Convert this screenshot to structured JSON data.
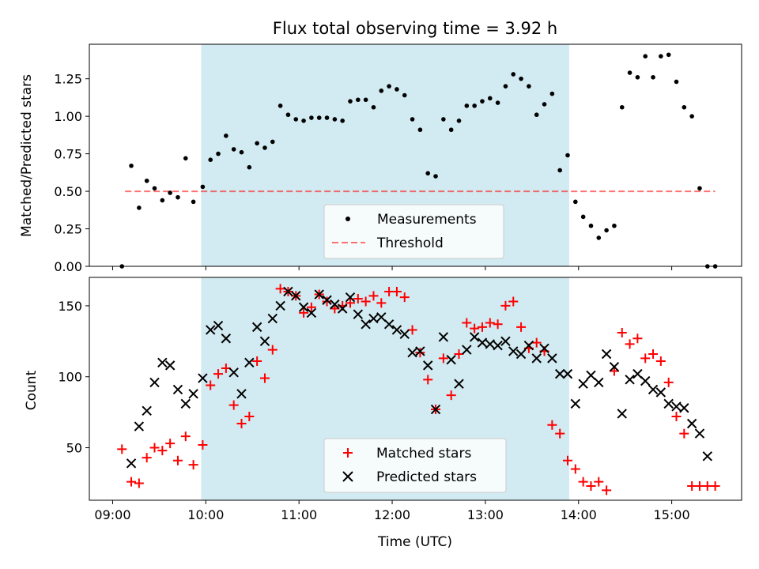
{
  "figure": {
    "title": "Flux total observing time = 3.92 h",
    "xlabel": "Time (UTC)",
    "x_tick_labels": [
      "09:00",
      "10:00",
      "11:00",
      "12:00",
      "13:00",
      "14:00",
      "15:00"
    ]
  },
  "colors": {
    "span": "#add8e6",
    "measurement": "#000000",
    "threshold": "#ff0000",
    "matched": "#ff0000",
    "predicted": "#000000"
  },
  "chart_data": [
    {
      "type": "scatter",
      "title": "Flux total observing time = 3.92 h",
      "ylabel": "Matched/Predicted stars",
      "xlim": [
        "08:45",
        "15:45"
      ],
      "ylim": [
        0,
        1.48
      ],
      "y_ticks": [
        "0.00",
        "0.25",
        "0.50",
        "0.75",
        "1.00",
        "1.25"
      ],
      "shaded_span": [
        "09:57",
        "13:54"
      ],
      "legend": {
        "location": "bottom-center",
        "entries": [
          "Measurements",
          "Threshold"
        ]
      },
      "threshold": {
        "name": "Threshold",
        "value": 0.5,
        "x_range": [
          "09:08",
          "15:28"
        ]
      },
      "series": [
        {
          "name": "Measurements",
          "marker": "dot",
          "x": [
            "09:06",
            "09:12",
            "09:17",
            "09:22",
            "09:27",
            "09:32",
            "09:37",
            "09:42",
            "09:47",
            "09:52",
            "09:58",
            "10:03",
            "10:08",
            "10:13",
            "10:18",
            "10:23",
            "10:28",
            "10:33",
            "10:38",
            "10:43",
            "10:48",
            "10:53",
            "10:58",
            "11:03",
            "11:08",
            "11:13",
            "11:18",
            "11:23",
            "11:28",
            "11:33",
            "11:38",
            "11:43",
            "11:48",
            "11:53",
            "11:58",
            "12:03",
            "12:08",
            "12:13",
            "12:18",
            "12:23",
            "12:28",
            "12:33",
            "12:38",
            "12:43",
            "12:48",
            "12:53",
            "12:58",
            "13:03",
            "13:08",
            "13:13",
            "13:18",
            "13:23",
            "13:28",
            "13:33",
            "13:38",
            "13:43",
            "13:48",
            "13:53",
            "13:58",
            "14:03",
            "14:08",
            "14:13",
            "14:18",
            "14:23",
            "14:28",
            "14:33",
            "14:38",
            "14:43",
            "14:48",
            "14:53",
            "14:58",
            "15:03",
            "15:08",
            "15:13",
            "15:18",
            "15:23",
            "15:28"
          ],
          "y": [
            0.0,
            0.67,
            0.39,
            0.57,
            0.52,
            0.44,
            0.49,
            0.46,
            0.72,
            0.43,
            0.53,
            0.71,
            0.75,
            0.87,
            0.78,
            0.76,
            0.66,
            0.82,
            0.79,
            0.83,
            1.07,
            1.01,
            0.98,
            0.97,
            0.99,
            0.99,
            0.99,
            0.98,
            0.97,
            1.1,
            1.11,
            1.11,
            1.06,
            1.17,
            1.2,
            1.18,
            1.14,
            0.98,
            0.91,
            0.62,
            0.6,
            0.98,
            0.91,
            0.97,
            1.07,
            1.07,
            1.1,
            1.12,
            1.09,
            1.2,
            1.28,
            1.25,
            1.2,
            1.01,
            1.08,
            1.15,
            0.64,
            0.74,
            0.43,
            0.33,
            0.27,
            0.19,
            0.24,
            0.27,
            1.06,
            1.29,
            1.26,
            1.4,
            1.26,
            1.4,
            1.41,
            1.23,
            1.06,
            1.0,
            0.52,
            0.0,
            0.0
          ]
        }
      ]
    },
    {
      "type": "scatter",
      "ylabel": "Count",
      "xlabel": "Time (UTC)",
      "xlim": [
        "08:45",
        "15:45"
      ],
      "ylim": [
        13,
        170
      ],
      "y_ticks": [
        "50",
        "100",
        "150"
      ],
      "shaded_span": [
        "09:57",
        "13:54"
      ],
      "legend": {
        "location": "bottom-center",
        "entries": [
          "Matched stars",
          "Predicted stars"
        ]
      },
      "series": [
        {
          "name": "Matched stars",
          "marker": "plus",
          "x": [
            "09:06",
            "09:12",
            "09:17",
            "09:22",
            "09:27",
            "09:32",
            "09:37",
            "09:42",
            "09:47",
            "09:52",
            "09:58",
            "10:03",
            "10:08",
            "10:13",
            "10:18",
            "10:23",
            "10:28",
            "10:33",
            "10:38",
            "10:43",
            "10:48",
            "10:53",
            "10:58",
            "11:03",
            "11:08",
            "11:13",
            "11:18",
            "11:23",
            "11:28",
            "11:33",
            "11:38",
            "11:43",
            "11:48",
            "11:53",
            "11:58",
            "12:03",
            "12:08",
            "12:13",
            "12:18",
            "12:23",
            "12:28",
            "12:33",
            "12:38",
            "12:43",
            "12:48",
            "12:53",
            "12:58",
            "13:03",
            "13:08",
            "13:13",
            "13:18",
            "13:23",
            "13:28",
            "13:33",
            "13:38",
            "13:43",
            "13:48",
            "13:53",
            "13:58",
            "14:03",
            "14:08",
            "14:13",
            "14:18",
            "14:23",
            "14:28",
            "14:33",
            "14:38",
            "14:43",
            "14:48",
            "14:53",
            "14:58",
            "15:03",
            "15:08",
            "15:13",
            "15:18",
            "15:23",
            "15:28"
          ],
          "y": [
            49,
            26,
            25,
            43,
            50,
            48,
            53,
            41,
            58,
            38,
            52,
            94,
            102,
            106,
            80,
            67,
            72,
            111,
            99,
            119,
            162,
            160,
            157,
            145,
            149,
            158,
            153,
            148,
            150,
            152,
            155,
            153,
            157,
            152,
            160,
            160,
            156,
            133,
            117,
            98,
            77,
            113,
            87,
            116,
            138,
            134,
            135,
            138,
            137,
            150,
            153,
            135,
            120,
            124,
            118,
            66,
            60,
            41,
            35,
            26,
            23,
            26,
            20,
            104,
            131,
            123,
            127,
            113,
            116,
            111,
            96,
            72,
            60,
            23,
            23,
            23,
            23
          ]
        },
        {
          "name": "Predicted stars",
          "marker": "x",
          "x": [
            "09:12",
            "09:17",
            "09:22",
            "09:27",
            "09:32",
            "09:37",
            "09:42",
            "09:47",
            "09:52",
            "09:58",
            "10:03",
            "10:08",
            "10:13",
            "10:18",
            "10:23",
            "10:28",
            "10:33",
            "10:38",
            "10:43",
            "10:48",
            "10:53",
            "10:58",
            "11:03",
            "11:08",
            "11:13",
            "11:18",
            "11:23",
            "11:28",
            "11:33",
            "11:38",
            "11:43",
            "11:48",
            "11:53",
            "11:58",
            "12:03",
            "12:08",
            "12:13",
            "12:18",
            "12:23",
            "12:28",
            "12:33",
            "12:38",
            "12:43",
            "12:48",
            "12:53",
            "12:58",
            "13:03",
            "13:08",
            "13:13",
            "13:18",
            "13:23",
            "13:28",
            "13:33",
            "13:38",
            "13:43",
            "13:48",
            "13:53",
            "13:58",
            "14:03",
            "14:08",
            "14:13",
            "14:18",
            "14:23",
            "14:28",
            "14:33",
            "14:38",
            "14:43",
            "14:48",
            "14:53",
            "14:58",
            "15:03",
            "15:08",
            "15:13",
            "15:18",
            "15:23"
          ],
          "y": [
            39,
            65,
            76,
            96,
            110,
            108,
            91,
            81,
            88,
            99,
            133,
            136,
            127,
            103,
            88,
            110,
            135,
            125,
            141,
            150,
            160,
            157,
            149,
            145,
            158,
            154,
            151,
            148,
            156,
            144,
            137,
            141,
            142,
            137,
            133,
            130,
            117,
            118,
            108,
            77,
            128,
            112,
            95,
            119,
            128,
            124,
            123,
            122,
            125,
            118,
            116,
            122,
            113,
            120,
            113,
            102,
            102,
            81,
            95,
            101,
            96,
            116,
            107,
            74,
            98,
            102,
            97,
            91,
            89,
            81,
            79,
            78,
            67,
            60,
            44
          ]
        }
      ]
    }
  ]
}
